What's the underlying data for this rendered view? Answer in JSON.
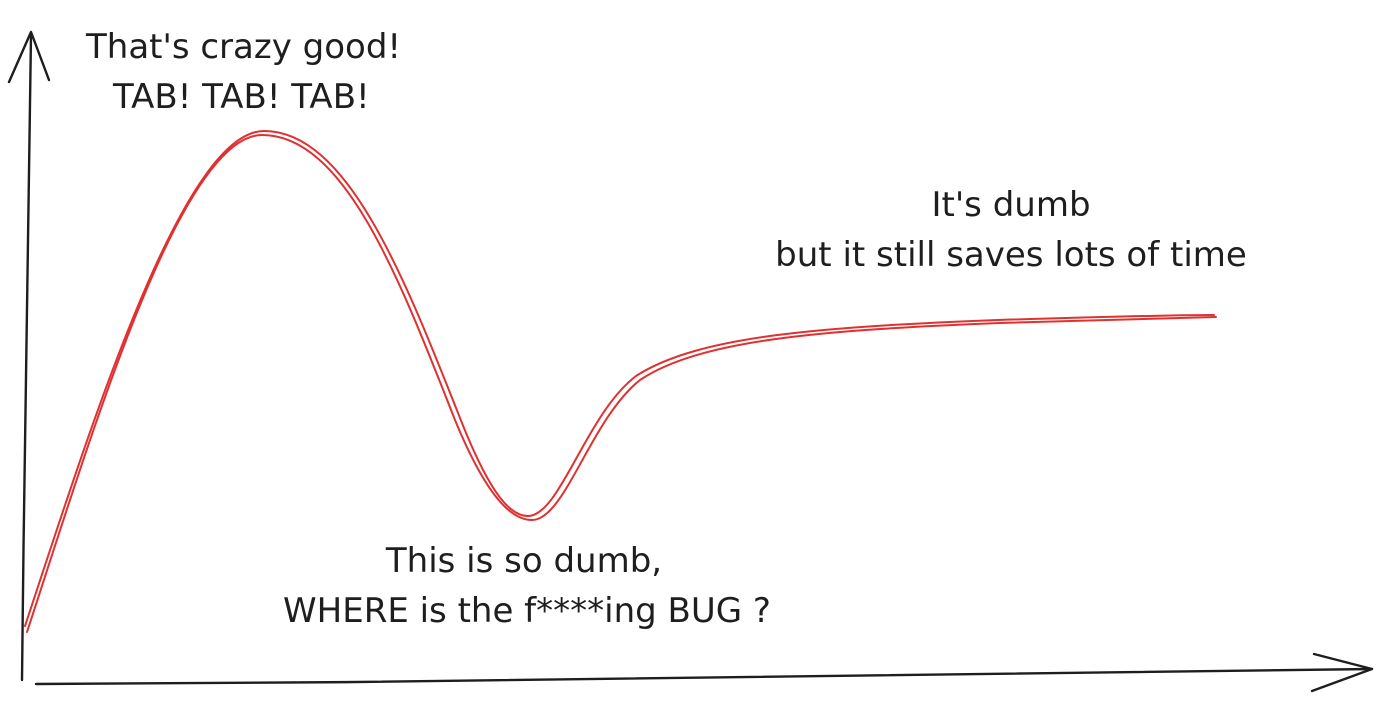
{
  "annotations": {
    "peak_line1": "That's crazy good!",
    "peak_line2": "TAB! TAB! TAB!",
    "plateau_line1": "It's dumb",
    "plateau_line2": "but it still saves lots of time",
    "trough_line1": "This is so dumb,",
    "trough_line2": "WHERE is the f****ing BUG ?"
  },
  "colors": {
    "ink": "#1e1e1e",
    "curve": "#e03131",
    "background": "#ffffff"
  }
}
